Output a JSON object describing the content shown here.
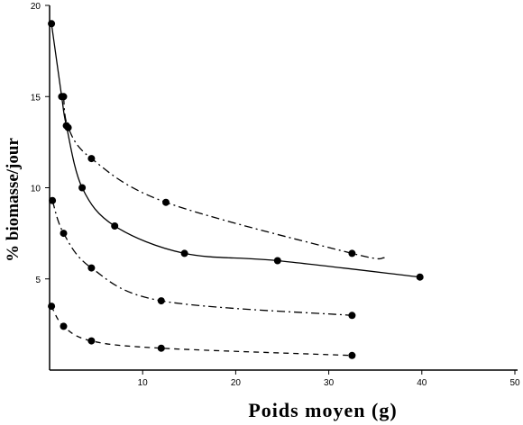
{
  "chart_data": {
    "type": "scatter",
    "title": "",
    "xlabel": "Poids moyen (g)",
    "ylabel": "% biomasse/jour",
    "xlim": [
      0,
      50
    ],
    "ylim": [
      0,
      20
    ],
    "x_ticks": [
      10,
      20,
      30,
      40,
      50
    ],
    "x_tick_labels": [
      "10",
      "20",
      "30",
      "40",
      "50"
    ],
    "y_ticks": [
      5,
      10,
      15,
      20
    ],
    "y_tick_labels": [
      "5",
      "10",
      "15",
      "20"
    ],
    "grid": false,
    "legend": "none",
    "series": [
      {
        "line_style": "dash-dot",
        "points": [
          [
            1.5,
            15.0
          ],
          [
            2.0,
            13.3
          ],
          [
            4.5,
            11.6
          ],
          [
            12.5,
            9.2
          ],
          [
            32.5,
            6.4
          ]
        ],
        "curve_end_x": 36
      },
      {
        "line_style": "solid",
        "points": [
          [
            0.2,
            19.0
          ],
          [
            1.3,
            15.0
          ],
          [
            1.8,
            13.4
          ],
          [
            3.5,
            10.0
          ],
          [
            7.0,
            7.9
          ],
          [
            14.5,
            6.4
          ],
          [
            24.5,
            6.0
          ],
          [
            39.8,
            5.1
          ]
        ]
      },
      {
        "line_style": "dash-dot",
        "points": [
          [
            0.3,
            9.3
          ],
          [
            1.5,
            7.5
          ],
          [
            4.5,
            5.6
          ],
          [
            12.0,
            3.8
          ],
          [
            32.5,
            3.0
          ]
        ]
      },
      {
        "line_style": "dash",
        "points": [
          [
            0.2,
            3.5
          ],
          [
            1.5,
            2.4
          ],
          [
            4.5,
            1.6
          ],
          [
            12.0,
            1.2
          ],
          [
            32.5,
            0.8
          ]
        ]
      }
    ]
  }
}
